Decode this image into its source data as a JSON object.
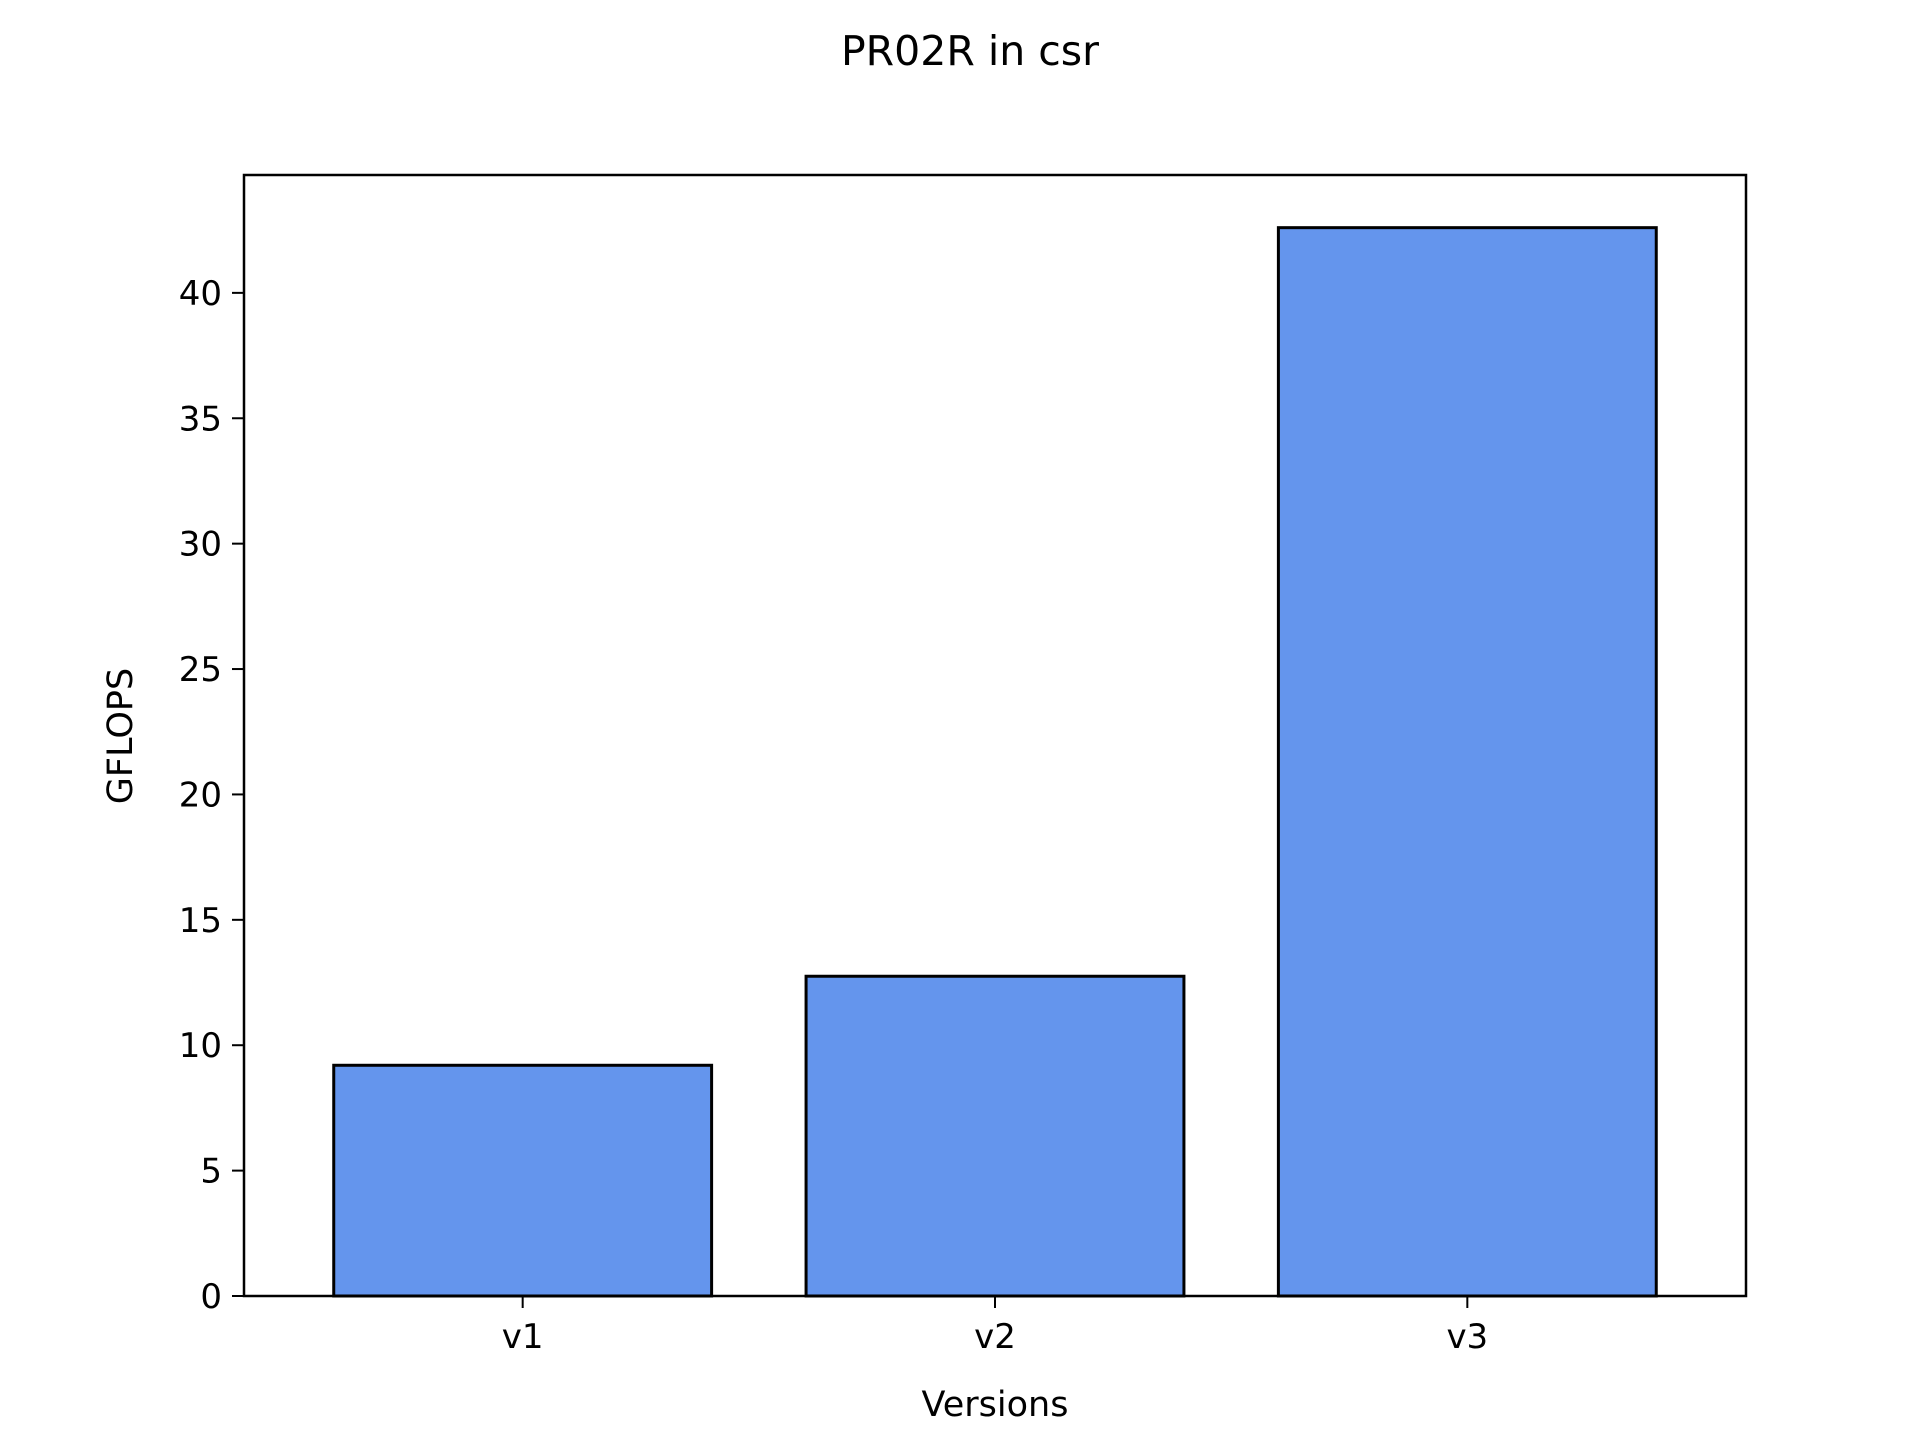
{
  "chart_data": {
    "type": "bar",
    "title": "PR02R in csr",
    "xlabel": "Versions",
    "ylabel": "GFLOPS",
    "categories": [
      "v1",
      "v2",
      "v3"
    ],
    "values": [
      9.2,
      12.75,
      42.6
    ],
    "ylim": [
      0,
      44.7
    ],
    "yticks": [
      "0",
      "5",
      "10",
      "15",
      "20",
      "25",
      "30",
      "35",
      "40"
    ],
    "grid": false,
    "bar_color": "#6495ED",
    "bar_edge_color": "#000000"
  }
}
